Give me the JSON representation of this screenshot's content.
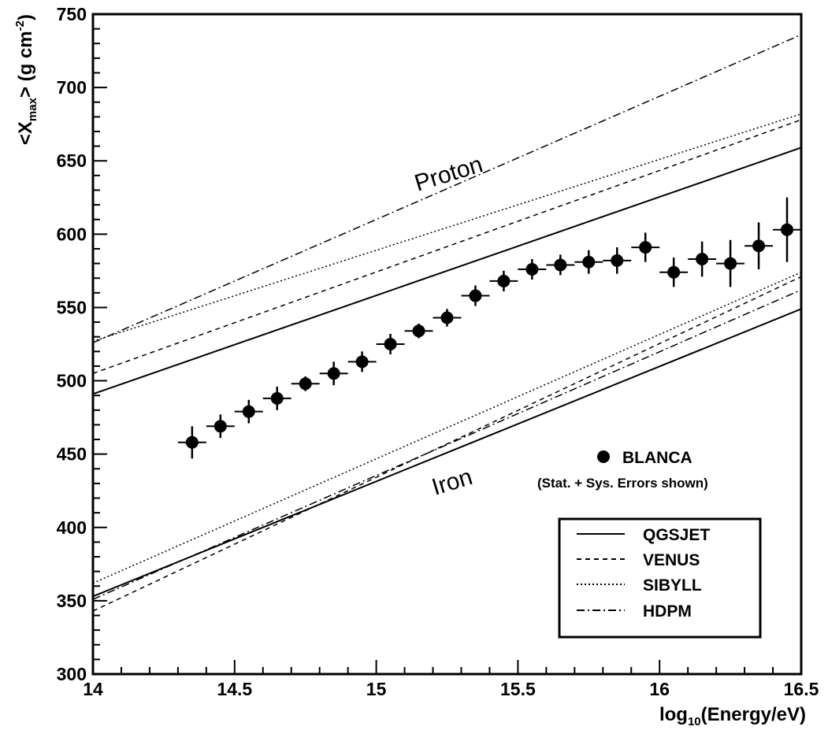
{
  "chart_data": {
    "type": "scatter",
    "xlabel_prefix": "log",
    "xlabel_sub": "10",
    "xlabel_suffix": "(Energy/eV)",
    "ylabel_prefix": "<X",
    "ylabel_sub": "max",
    "ylabel_suffix": "> (g cm",
    "ylabel_sup": "-2",
    "ylabel_close": ")",
    "xlim": [
      14,
      16.5
    ],
    "ylim": [
      300,
      750
    ],
    "x_ticks": [
      14,
      14.5,
      15,
      15.5,
      16,
      16.5
    ],
    "x_tick_labels": [
      "14",
      "14.5",
      "15",
      "15.5",
      "16",
      "16.5"
    ],
    "y_ticks": [
      300,
      350,
      400,
      450,
      500,
      550,
      600,
      650,
      700,
      750
    ],
    "y_tick_labels": [
      "300",
      "350",
      "400",
      "450",
      "500",
      "550",
      "600",
      "650",
      "700",
      "750"
    ],
    "grid": false,
    "legend_position": "bottom-right",
    "annotations": {
      "proton": "Proton",
      "iron": "Iron"
    },
    "data_series": {
      "name": "BLANCA",
      "note": "(Stat. + Sys. Errors shown)",
      "x": [
        14.35,
        14.45,
        14.55,
        14.65,
        14.75,
        14.85,
        14.95,
        15.05,
        15.15,
        15.25,
        15.35,
        15.45,
        15.55,
        15.65,
        15.75,
        15.85,
        15.95,
        16.05,
        16.15,
        16.25,
        16.35,
        16.45
      ],
      "y": [
        458,
        469,
        479,
        488,
        498,
        505,
        513,
        525,
        534,
        543,
        558,
        568,
        576,
        579,
        581,
        582,
        591,
        574,
        583,
        580,
        592,
        603
      ],
      "yerr": [
        11,
        8,
        8,
        8,
        5,
        8,
        7,
        7,
        5,
        6,
        7,
        7,
        7,
        7,
        8,
        9,
        10,
        10,
        12,
        16,
        16,
        22
      ]
    },
    "series": [
      {
        "name": "QGSJET",
        "style": "solid",
        "x": [
          14,
          16.5
        ],
        "proton": [
          491,
          659
        ],
        "iron": [
          353,
          549
        ]
      },
      {
        "name": "VENUS",
        "style": "dashed",
        "x": [
          14,
          16.5
        ],
        "proton": [
          505,
          678
        ],
        "iron": [
          343,
          571
        ]
      },
      {
        "name": "SIBYLL",
        "style": "dotted",
        "x": [
          14,
          16.5
        ],
        "proton": [
          527,
          682
        ],
        "iron": [
          362,
          574
        ]
      },
      {
        "name": "HDPM",
        "style": "dashdot",
        "x": [
          14,
          16.5
        ],
        "proton": [
          526,
          736
        ],
        "iron": [
          351,
          562
        ]
      }
    ]
  }
}
